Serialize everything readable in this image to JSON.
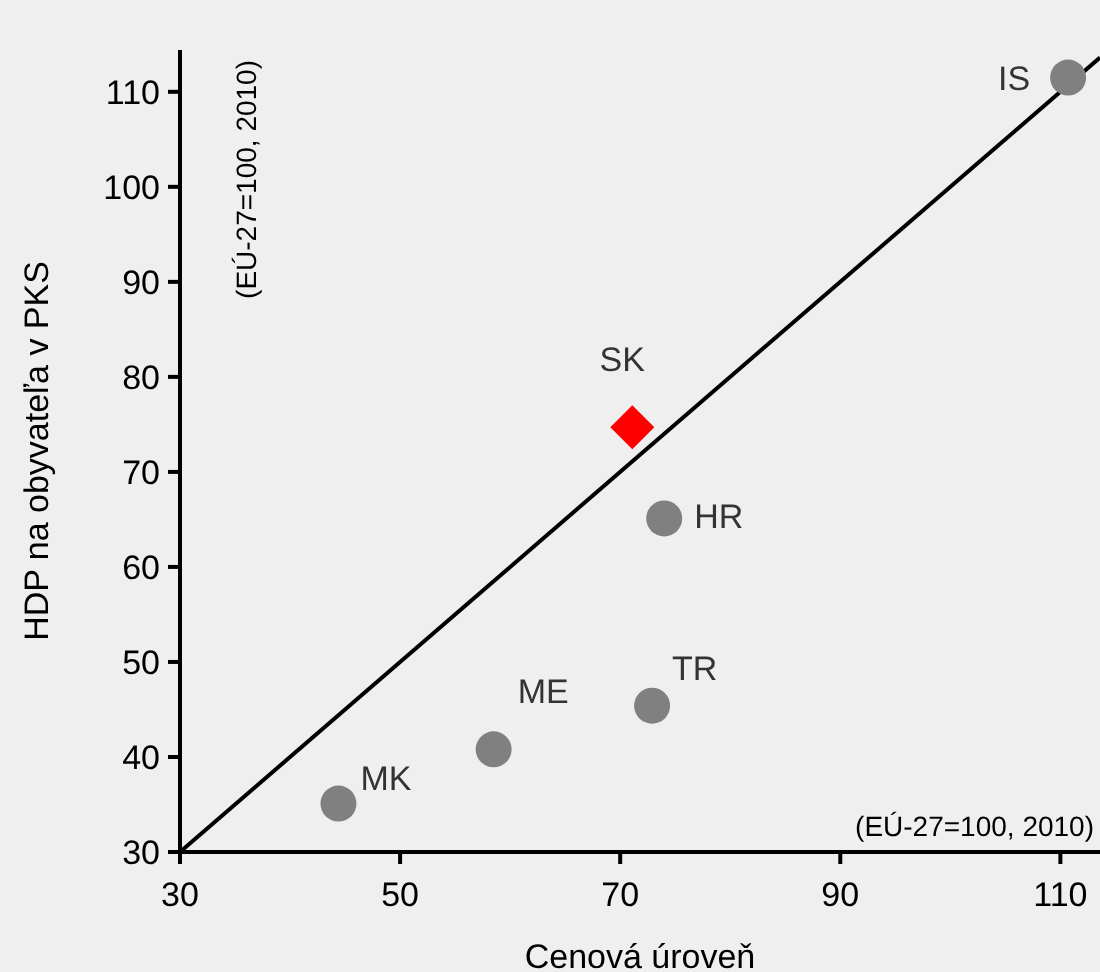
{
  "chart_data": {
    "type": "scatter",
    "xlabel": "Cenová úroveň",
    "ylabel": "HDP na obyvateľa v PKS",
    "xlim": [
      30,
      113.6
    ],
    "ylim": [
      30,
      114.4
    ],
    "xticks": [
      30,
      50,
      70,
      90,
      110
    ],
    "yticks": [
      30,
      40,
      50,
      60,
      70,
      80,
      90,
      100,
      110
    ],
    "grid": false,
    "series": [
      {
        "type": "line",
        "color": "#000000",
        "marker": "none",
        "x": [
          30,
          113.6
        ],
        "values": [
          30,
          113.6
        ]
      },
      {
        "type": "scatter",
        "color": "#808080",
        "marker": "circle",
        "x": [
          44.4,
          58.5,
          72.9,
          74.0,
          110.7
        ],
        "values": [
          35.1,
          40.8,
          45.4,
          65.1,
          111.5
        ]
      },
      {
        "type": "scatter",
        "color": "#ff0000",
        "marker": "diamond",
        "x": [
          71.1
        ],
        "values": [
          74.7
        ]
      }
    ],
    "annotations": [
      {
        "text": "MK",
        "x": 44.4,
        "y": 35.1
      },
      {
        "text": "ME",
        "x": 58.5,
        "y": 40.8
      },
      {
        "text": "TR",
        "x": 72.9,
        "y": 45.4
      },
      {
        "text": "HR",
        "x": 74.0,
        "y": 65.1
      },
      {
        "text": "IS",
        "x": 110.7,
        "y": 111.5
      },
      {
        "text": "SK",
        "x": 71.1,
        "y": 74.7
      },
      "(EÚ-27=100, 2010)",
      "(EÚ-27=100, 2010)"
    ]
  }
}
